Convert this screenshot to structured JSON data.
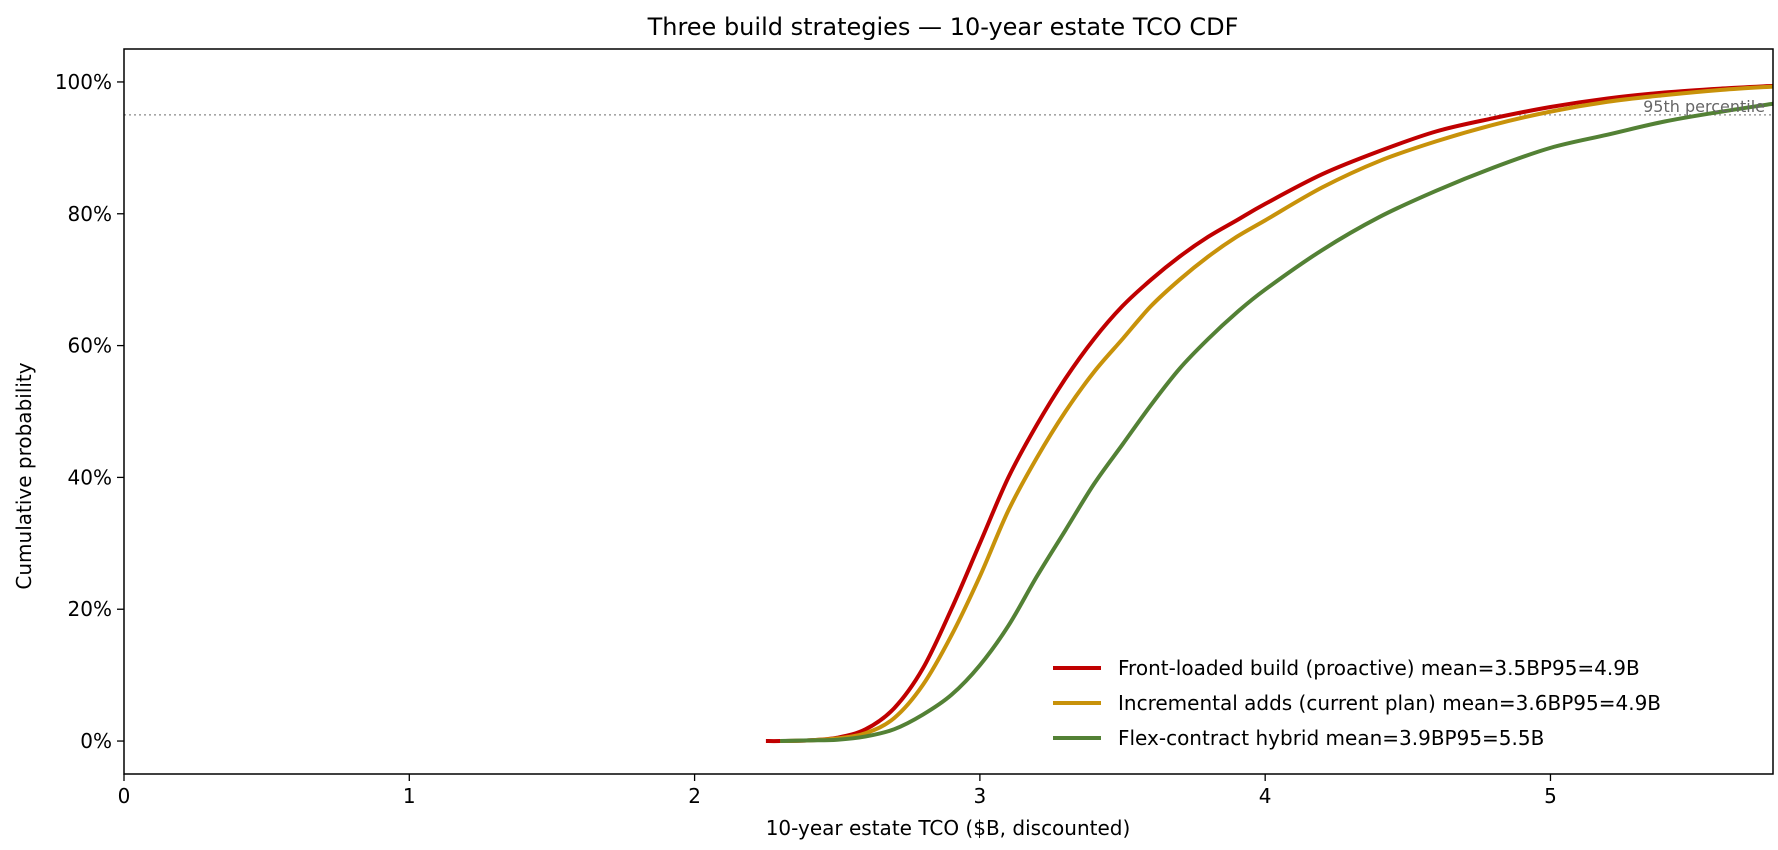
{
  "chart_data": {
    "type": "line",
    "title": "Three build strategies — 10-year estate TCO CDF",
    "xlabel": "10-year estate TCO  ($B, discounted)",
    "ylabel": "Cumulative probability",
    "xlim": [
      0,
      5.78
    ],
    "ylim": [
      -0.05,
      1.05
    ],
    "x_ticks": [
      0,
      1,
      2,
      3,
      4,
      5
    ],
    "x_tick_labels": [
      "0",
      "1",
      "2",
      "3",
      "4",
      "5"
    ],
    "y_ticks": [
      0,
      0.2,
      0.4,
      0.6,
      0.8,
      1.0
    ],
    "y_tick_labels": [
      "0%",
      "20%",
      "40%",
      "60%",
      "80%",
      "100%"
    ],
    "grid": false,
    "legend_position": "lower-right",
    "reference_line": {
      "y": 0.95,
      "label": "95th percentile",
      "color": "#888888"
    },
    "series": [
      {
        "name": "Front-loaded build (proactive)   mean=3.5BP95=4.9B",
        "color": "#c00000",
        "x": [
          2.25,
          2.3,
          2.4,
          2.5,
          2.6,
          2.7,
          2.8,
          2.9,
          3.0,
          3.1,
          3.2,
          3.3,
          3.4,
          3.5,
          3.6,
          3.7,
          3.8,
          3.9,
          4.0,
          4.2,
          4.4,
          4.6,
          4.8,
          5.0,
          5.2,
          5.4,
          5.6,
          5.78
        ],
        "y": [
          0.0,
          0.0,
          0.001,
          0.005,
          0.018,
          0.05,
          0.11,
          0.2,
          0.3,
          0.4,
          0.48,
          0.55,
          0.61,
          0.66,
          0.7,
          0.735,
          0.765,
          0.79,
          0.815,
          0.86,
          0.895,
          0.925,
          0.945,
          0.962,
          0.975,
          0.984,
          0.99,
          0.994
        ]
      },
      {
        "name": "Incremental adds (current plan)   mean=3.6BP95=4.9B",
        "color": "#c8920a",
        "x": [
          2.3,
          2.4,
          2.5,
          2.6,
          2.7,
          2.8,
          2.9,
          3.0,
          3.1,
          3.2,
          3.3,
          3.4,
          3.5,
          3.6,
          3.7,
          3.8,
          3.9,
          4.0,
          4.2,
          4.4,
          4.6,
          4.8,
          5.0,
          5.2,
          5.4,
          5.6,
          5.78
        ],
        "y": [
          0.0,
          0.001,
          0.004,
          0.012,
          0.035,
          0.085,
          0.16,
          0.25,
          0.35,
          0.43,
          0.5,
          0.56,
          0.61,
          0.66,
          0.7,
          0.735,
          0.765,
          0.79,
          0.84,
          0.88,
          0.91,
          0.935,
          0.955,
          0.97,
          0.98,
          0.988,
          0.993
        ]
      },
      {
        "name": "Flex-contract hybrid   mean=3.9BP95=5.5B",
        "color": "#538135",
        "x": [
          2.3,
          2.4,
          2.5,
          2.6,
          2.7,
          2.8,
          2.9,
          3.0,
          3.1,
          3.2,
          3.3,
          3.4,
          3.5,
          3.6,
          3.7,
          3.8,
          3.9,
          4.0,
          4.2,
          4.4,
          4.6,
          4.8,
          5.0,
          5.2,
          5.4,
          5.6,
          5.78
        ],
        "y": [
          0.0,
          0.001,
          0.002,
          0.007,
          0.018,
          0.04,
          0.07,
          0.115,
          0.175,
          0.25,
          0.32,
          0.39,
          0.45,
          0.51,
          0.565,
          0.61,
          0.65,
          0.685,
          0.745,
          0.795,
          0.835,
          0.87,
          0.9,
          0.92,
          0.94,
          0.955,
          0.967
        ]
      }
    ]
  }
}
